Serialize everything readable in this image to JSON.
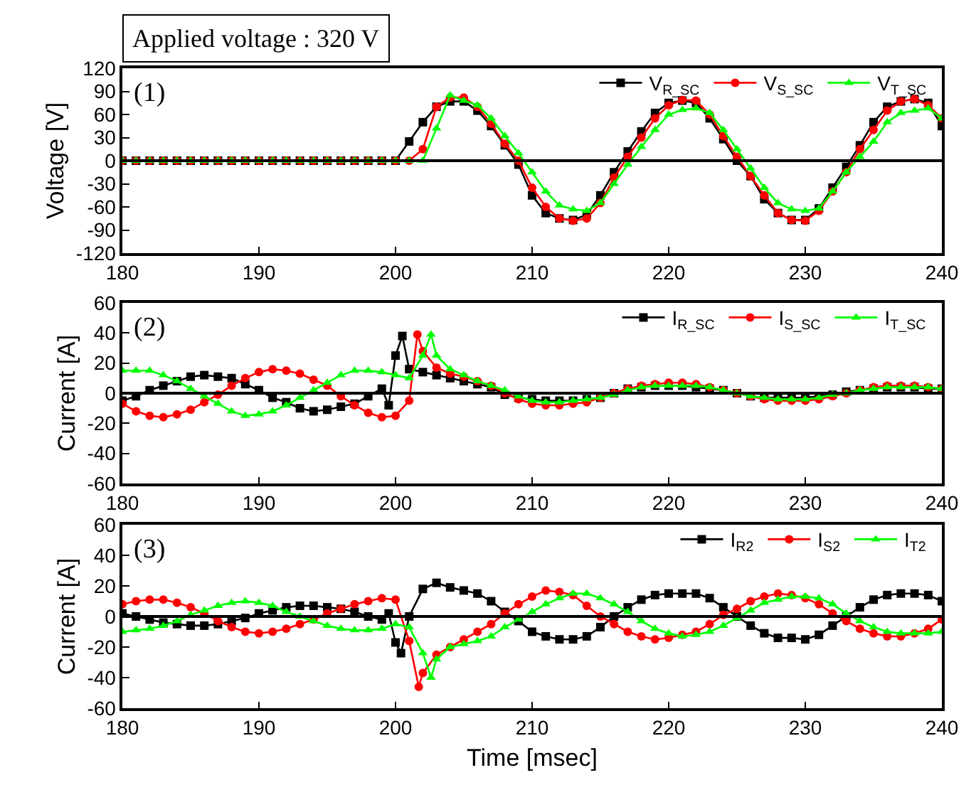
{
  "chart_data": [
    {
      "type": "line",
      "title": "Applied voltage : 320 V",
      "ylabel": "Voltage [V]",
      "annotations": [
        "(1)"
      ],
      "legend": "top right",
      "xlim": [
        180,
        240
      ],
      "xticks": [
        180,
        190,
        200,
        210,
        220,
        230,
        240
      ],
      "ylim": [
        -120,
        120
      ],
      "yticks": [
        -120,
        -90,
        -60,
        -30,
        0,
        30,
        60,
        90,
        120
      ],
      "ref_lines": [
        {
          "axis": "y",
          "value": 0,
          "color": "#000000"
        }
      ],
      "x": [
        180,
        181,
        182,
        183,
        184,
        185,
        186,
        187,
        188,
        189,
        190,
        191,
        192,
        193,
        194,
        195,
        196,
        197,
        198,
        199,
        200,
        201,
        202,
        203,
        204,
        205,
        206,
        207,
        208,
        209,
        210,
        211,
        212,
        213,
        214,
        215,
        216,
        217,
        218,
        219,
        220,
        221,
        222,
        223,
        224,
        225,
        226,
        227,
        228,
        229,
        230,
        231,
        232,
        233,
        234,
        235,
        236,
        237,
        238,
        239,
        240
      ],
      "series": [
        {
          "name": "V$_{R_SC}$",
          "color": "#000000",
          "marker": "square",
          "values": [
            0,
            0,
            0,
            0,
            0,
            0,
            0,
            0,
            0,
            0,
            0,
            0,
            0,
            0,
            0,
            0,
            0,
            0,
            0,
            0,
            0,
            25,
            50,
            70,
            77,
            77,
            65,
            45,
            20,
            -5,
            -45,
            -68,
            -75,
            -77,
            -70,
            -45,
            -15,
            12,
            38,
            62,
            75,
            78,
            75,
            55,
            28,
            0,
            -20,
            -50,
            -68,
            -77,
            -77,
            -62,
            -35,
            -8,
            20,
            50,
            70,
            77,
            80,
            75,
            45
          ]
        },
        {
          "name": "V$_{S_SC}$",
          "color": "#ff0000",
          "marker": "circle",
          "values": [
            0,
            0,
            0,
            0,
            0,
            0,
            0,
            0,
            0,
            0,
            0,
            0,
            0,
            0,
            0,
            0,
            0,
            0,
            0,
            0,
            0,
            0,
            15,
            70,
            82,
            82,
            70,
            48,
            22,
            0,
            -35,
            -60,
            -75,
            -78,
            -75,
            -55,
            -22,
            5,
            30,
            55,
            72,
            79,
            78,
            60,
            32,
            5,
            -20,
            -45,
            -68,
            -77,
            -78,
            -65,
            -40,
            -15,
            15,
            40,
            65,
            77,
            80,
            72,
            55
          ]
        },
        {
          "name": "V$_{T_SC}$",
          "color": "#00ff00",
          "marker": "triangle",
          "values": [
            0,
            0,
            0,
            0,
            0,
            0,
            0,
            0,
            0,
            0,
            0,
            0,
            0,
            0,
            0,
            0,
            0,
            0,
            0,
            0,
            0,
            0,
            0,
            42,
            85,
            78,
            72,
            55,
            32,
            10,
            -15,
            -40,
            -58,
            -63,
            -65,
            -55,
            -30,
            -5,
            18,
            40,
            60,
            66,
            68,
            62,
            40,
            15,
            -10,
            -35,
            -55,
            -63,
            -65,
            -62,
            -40,
            -15,
            5,
            25,
            50,
            62,
            65,
            68,
            55
          ]
        }
      ]
    },
    {
      "type": "line",
      "ylabel": "Current [A]",
      "annotations": [
        "(2)"
      ],
      "legend": "top right",
      "xlim": [
        180,
        240
      ],
      "xticks": [
        180,
        190,
        200,
        210,
        220,
        230,
        240
      ],
      "ylim": [
        -60,
        60
      ],
      "yticks": [
        -60,
        -40,
        -20,
        0,
        20,
        40,
        60
      ],
      "ref_lines": [
        {
          "axis": "y",
          "value": 0,
          "color": "#000000"
        }
      ],
      "series": [
        {
          "name": "I$_{R_SC}$",
          "color": "#000000",
          "marker": "square",
          "x": [
            180,
            181,
            182,
            183,
            184,
            185,
            186,
            187,
            188,
            189,
            190,
            191,
            192,
            193,
            194,
            195,
            196,
            197,
            198,
            199,
            199.5,
            200,
            200.5,
            201,
            202,
            203,
            204,
            205,
            206,
            207,
            208,
            209,
            210,
            211,
            212,
            213,
            214,
            215,
            216,
            217,
            218,
            219,
            220,
            221,
            222,
            223,
            224,
            225,
            226,
            227,
            228,
            229,
            230,
            231,
            232,
            233,
            234,
            235,
            236,
            237,
            238,
            239,
            240
          ],
          "values": [
            -5,
            -2,
            2,
            5,
            8,
            11,
            12,
            11,
            10,
            6,
            2,
            -3,
            -6,
            -10,
            -12,
            -11,
            -9,
            -7,
            -2,
            3,
            -8,
            25,
            38,
            16,
            14,
            12,
            10,
            8,
            6,
            4,
            -1,
            -3,
            -4,
            -5,
            -5,
            -5,
            -4,
            -3,
            0,
            3,
            4,
            5,
            5,
            5,
            4,
            3,
            2,
            0,
            -2,
            -3,
            -3,
            -3,
            -3,
            -2,
            -1,
            1,
            2,
            3,
            4,
            4,
            4,
            3,
            3
          ]
        },
        {
          "name": "I$_{S_SC}$",
          "color": "#ff0000",
          "marker": "circle",
          "x": [
            180,
            181,
            182,
            183,
            184,
            185,
            186,
            187,
            188,
            189,
            190,
            191,
            192,
            193,
            194,
            195,
            196,
            197,
            198,
            199,
            200,
            201,
            201.6,
            202,
            203,
            204,
            205,
            206,
            207,
            208,
            209,
            210,
            211,
            212,
            213,
            214,
            215,
            216,
            217,
            218,
            219,
            220,
            221,
            222,
            223,
            224,
            225,
            226,
            227,
            228,
            229,
            230,
            231,
            232,
            233,
            234,
            235,
            236,
            237,
            238,
            239,
            240
          ],
          "values": [
            -7,
            -12,
            -15,
            -16,
            -14,
            -11,
            -6,
            -1,
            5,
            10,
            14,
            16,
            15,
            13,
            9,
            5,
            -2,
            -8,
            -13,
            -16,
            -15,
            -5,
            39,
            28,
            17,
            13,
            11,
            8,
            5,
            0,
            -4,
            -7,
            -8,
            -8,
            -7,
            -6,
            -3,
            0,
            3,
            5,
            6,
            7,
            7,
            6,
            4,
            2,
            0,
            -2,
            -4,
            -5,
            -5,
            -5,
            -4,
            -2,
            0,
            2,
            4,
            5,
            5,
            5,
            4,
            3
          ]
        },
        {
          "name": "I$_{T_SC}$",
          "color": "#00ff00",
          "marker": "triangle",
          "x": [
            180,
            181,
            182,
            183,
            184,
            185,
            186,
            187,
            188,
            189,
            190,
            191,
            192,
            193,
            194,
            195,
            196,
            197,
            198,
            199,
            200,
            201,
            202,
            202.6,
            203,
            204,
            205,
            206,
            207,
            208,
            209,
            210,
            211,
            212,
            213,
            214,
            215,
            216,
            217,
            218,
            219,
            220,
            221,
            222,
            223,
            224,
            225,
            226,
            227,
            228,
            229,
            230,
            231,
            232,
            233,
            234,
            235,
            236,
            237,
            238,
            239,
            240
          ],
          "values": [
            15,
            15,
            15,
            12,
            8,
            3,
            -2,
            -7,
            -12,
            -15,
            -14,
            -12,
            -8,
            -3,
            2,
            7,
            12,
            15,
            15,
            14,
            12,
            10,
            25,
            39,
            25,
            16,
            12,
            8,
            5,
            2,
            -2,
            -5,
            -6,
            -6,
            -5,
            -4,
            -3,
            -1,
            2,
            4,
            5,
            5,
            5,
            5,
            4,
            2,
            0,
            -2,
            -3,
            -4,
            -4,
            -4,
            -3,
            -1,
            0,
            2,
            3,
            4,
            4,
            4,
            4,
            3
          ]
        }
      ]
    },
    {
      "type": "line",
      "ylabel": "Current [A]",
      "xlabel": "Time [msec]",
      "annotations": [
        "(3)"
      ],
      "legend": "top right",
      "xlim": [
        180,
        240
      ],
      "xticks": [
        180,
        190,
        200,
        210,
        220,
        230,
        240
      ],
      "ylim": [
        -60,
        60
      ],
      "yticks": [
        -60,
        -40,
        -20,
        0,
        20,
        40,
        60
      ],
      "ref_lines": [
        {
          "axis": "y",
          "value": 0,
          "color": "#000000"
        }
      ],
      "series": [
        {
          "name": "I$_{R2}$",
          "color": "#000000",
          "marker": "square",
          "x": [
            180,
            181,
            182,
            183,
            184,
            185,
            186,
            187,
            188,
            189,
            190,
            191,
            192,
            193,
            194,
            195,
            196,
            197,
            198,
            199,
            199.5,
            200,
            200.4,
            201,
            202,
            203,
            204,
            205,
            206,
            207,
            208,
            209,
            210,
            211,
            212,
            213,
            214,
            215,
            216,
            217,
            218,
            219,
            220,
            221,
            222,
            223,
            224,
            225,
            226,
            227,
            228,
            229,
            230,
            231,
            232,
            233,
            234,
            235,
            236,
            237,
            238,
            239,
            240
          ],
          "values": [
            2,
            0,
            -2,
            -4,
            -5,
            -6,
            -6,
            -5,
            -3,
            -1,
            2,
            4,
            6,
            7,
            7,
            6,
            5,
            3,
            0,
            -2,
            2,
            -17,
            -24,
            0,
            18,
            22,
            19,
            17,
            15,
            10,
            3,
            -3,
            -10,
            -13,
            -15,
            -15,
            -13,
            -7,
            0,
            6,
            11,
            14,
            15,
            15,
            15,
            12,
            6,
            0,
            -6,
            -11,
            -14,
            -14,
            -15,
            -12,
            -6,
            0,
            6,
            11,
            14,
            15,
            15,
            14,
            10
          ]
        },
        {
          "name": "I$_{S2}$",
          "color": "#ff0000",
          "marker": "circle",
          "x": [
            180,
            181,
            182,
            183,
            184,
            185,
            186,
            187,
            188,
            189,
            190,
            191,
            192,
            193,
            194,
            195,
            196,
            197,
            198,
            199,
            200,
            201,
            201.7,
            202,
            203,
            204,
            205,
            206,
            207,
            208,
            209,
            210,
            211,
            212,
            213,
            214,
            215,
            216,
            217,
            218,
            219,
            220,
            221,
            222,
            223,
            224,
            225,
            226,
            227,
            228,
            229,
            230,
            231,
            232,
            233,
            234,
            235,
            236,
            237,
            238,
            239,
            240
          ],
          "values": [
            8,
            10,
            11,
            11,
            9,
            6,
            2,
            -3,
            -7,
            -10,
            -11,
            -10,
            -8,
            -5,
            -2,
            2,
            5,
            8,
            10,
            12,
            11,
            -16,
            -46,
            -37,
            -25,
            -20,
            -15,
            -10,
            -5,
            2,
            8,
            13,
            17,
            16,
            14,
            7,
            0,
            -5,
            -10,
            -13,
            -15,
            -14,
            -12,
            -10,
            -5,
            1,
            5,
            10,
            13,
            15,
            14,
            12,
            8,
            2,
            -3,
            -8,
            -11,
            -13,
            -13,
            -11,
            -8,
            -2
          ]
        },
        {
          "name": "I$_{T2}$",
          "color": "#00ff00",
          "marker": "triangle",
          "x": [
            180,
            181,
            182,
            183,
            184,
            185,
            186,
            187,
            188,
            189,
            190,
            191,
            192,
            193,
            194,
            195,
            196,
            197,
            198,
            199,
            200,
            201,
            202,
            202.6,
            203,
            204,
            205,
            206,
            207,
            208,
            209,
            210,
            211,
            212,
            213,
            214,
            215,
            216,
            217,
            218,
            219,
            220,
            221,
            222,
            223,
            224,
            225,
            226,
            227,
            228,
            229,
            230,
            231,
            232,
            233,
            234,
            235,
            236,
            237,
            238,
            239,
            240
          ],
          "values": [
            -10,
            -9,
            -8,
            -6,
            -3,
            1,
            4,
            7,
            9,
            10,
            9,
            7,
            3,
            0,
            -3,
            -6,
            -8,
            -9,
            -9,
            -8,
            -5,
            -7,
            -24,
            -40,
            -28,
            -20,
            -18,
            -16,
            -13,
            -7,
            -2,
            3,
            8,
            12,
            15,
            15,
            12,
            8,
            3,
            -3,
            -8,
            -11,
            -13,
            -12,
            -10,
            -6,
            -1,
            4,
            9,
            11,
            13,
            13,
            12,
            8,
            2,
            -3,
            -7,
            -10,
            -11,
            -11,
            -11,
            -10
          ]
        }
      ]
    }
  ]
}
